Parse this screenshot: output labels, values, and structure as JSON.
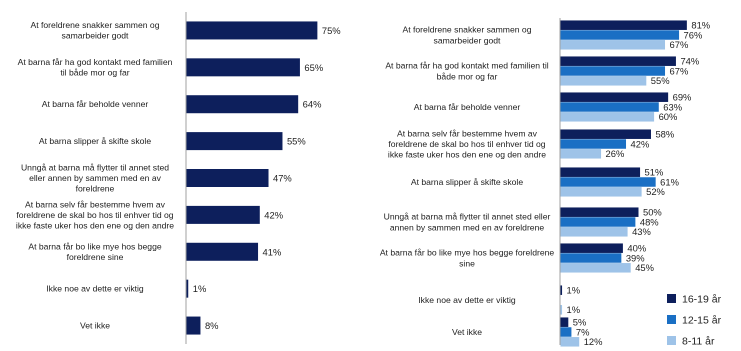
{
  "chart_data": [
    {
      "type": "bar",
      "orientation": "horizontal",
      "categories": [
        [
          "At foreldrene snakker sammen og",
          "samarbeider godt"
        ],
        [
          "At barna får ha god kontakt med familien",
          "til både mor og far"
        ],
        [
          "At barna får beholde venner"
        ],
        [
          "At barna slipper å skifte skole"
        ],
        [
          "Unngå at barna må flytter til annet sted",
          "eller annen by sammen med en av",
          "foreldrene"
        ],
        [
          "At barna selv får bestemme hvem av",
          "foreldrene de skal bo hos til enhver tid og",
          "ikke faste uker hos den ene og den andre"
        ],
        [
          "At barna får bo like mye hos begge",
          "foreldrene sine"
        ],
        [
          "Ikke noe av dette er viktig"
        ],
        [
          "Vet ikke"
        ]
      ],
      "values": [
        75,
        65,
        64,
        55,
        47,
        42,
        41,
        1,
        8
      ],
      "value_labels": [
        "75%",
        "65%",
        "64%",
        "55%",
        "47%",
        "42%",
        "41%",
        "1%",
        "8%"
      ],
      "xlim": [
        0,
        100
      ],
      "color": "#0d1f5c",
      "grid": false
    },
    {
      "type": "bar",
      "orientation": "horizontal",
      "categories": [
        [
          "At foreldrene snakker sammen og",
          "samarbeider godt"
        ],
        [
          "At barna får ha god kontakt med familien til",
          "både mor og far"
        ],
        [
          "At barna får beholde venner"
        ],
        [
          "At barna selv får bestemme hvem av",
          "foreldrene de skal bo hos til enhver tid og",
          "ikke faste uker hos den ene og den andre"
        ],
        [
          "At barna slipper å skifte skole"
        ],
        [
          "Unngå at barna må flytter til annet sted eller",
          "annen by sammen med en av foreldrene"
        ],
        [
          "At barna får bo like mye hos begge foreldrene",
          "sine"
        ],
        [
          "Ikke noe av dette er viktig"
        ],
        [
          "Vet ikke"
        ]
      ],
      "series": [
        {
          "name": "16-19 år",
          "color": "#0d1f5c",
          "values": [
            81,
            74,
            69,
            58,
            51,
            50,
            40,
            1,
            5
          ],
          "value_labels": [
            "81%",
            "74%",
            "69%",
            "58%",
            "51%",
            "50%",
            "40%",
            "1%",
            "5%"
          ]
        },
        {
          "name": "12-15 år",
          "color": "#1a6fc4",
          "values": [
            76,
            67,
            63,
            42,
            61,
            48,
            39,
            0,
            7
          ],
          "value_labels": [
            "76%",
            "67%",
            "63%",
            "42%",
            "61%",
            "48%",
            "39%",
            "",
            "7%"
          ]
        },
        {
          "name": "8-11 år",
          "color": "#9ec3e8",
          "values": [
            67,
            55,
            60,
            26,
            52,
            43,
            45,
            1,
            12
          ],
          "value_labels": [
            "67%",
            "55%",
            "60%",
            "26%",
            "52%",
            "43%",
            "45%",
            "1%",
            "12%"
          ]
        }
      ],
      "xlim": [
        0,
        100
      ],
      "legend_position": "bottom-right",
      "grid": false
    }
  ]
}
